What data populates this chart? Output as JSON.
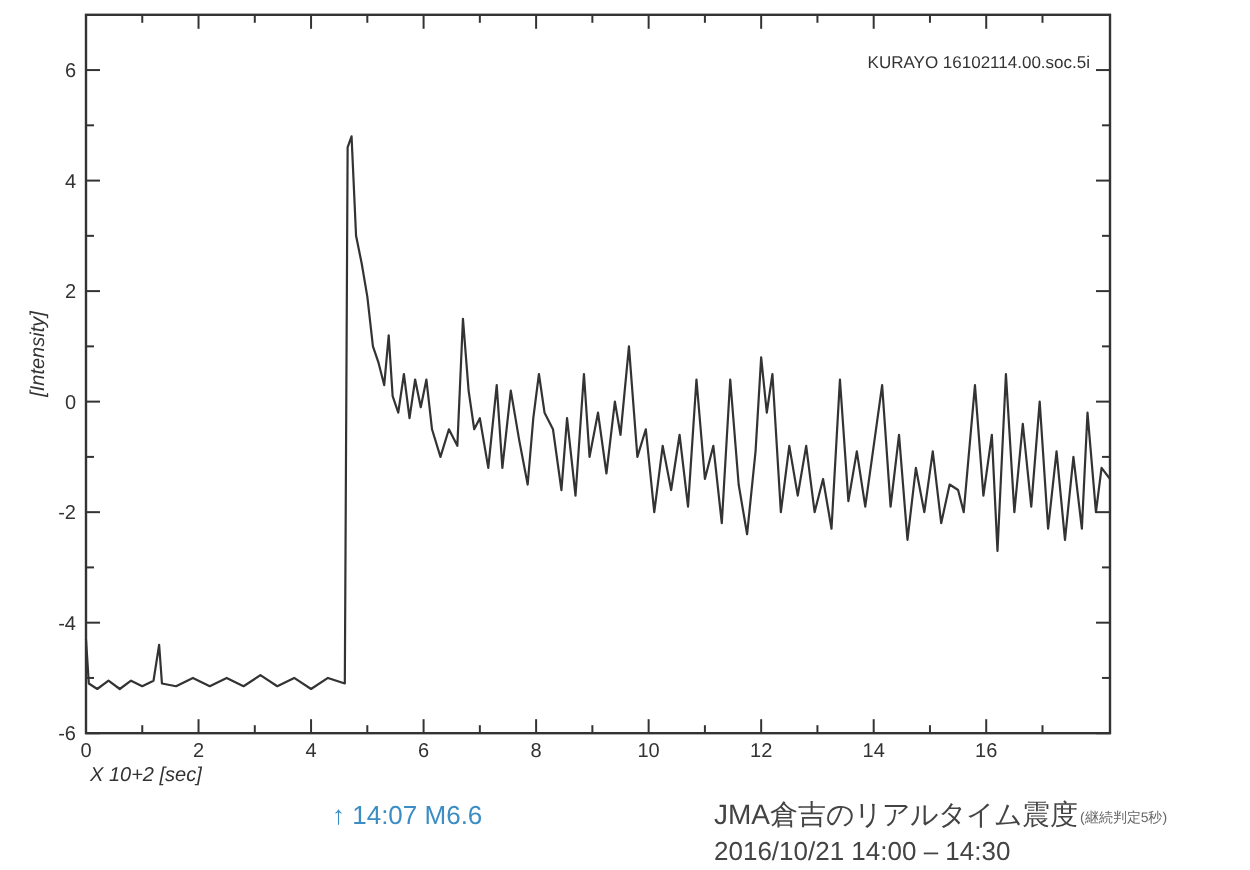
{
  "chart_data": {
    "type": "line",
    "xlabel": "X 10+2 [sec]",
    "ylabel": "[Intensity]",
    "annotations": [
      "KURAYO  16102114.00.soc.5i",
      "↑ 14:07 M6.6",
      "JMA倉吉のリアルタイム震度",
      "(継続判定5秒)",
      "2016/10/21 14:00 – 14:30"
    ],
    "xlim": [
      0,
      18.2
    ],
    "ylim": [
      -6,
      7
    ],
    "xticks": [
      0,
      {
        "value": 1,
        "label": null
      },
      2,
      {
        "value": 3,
        "label": null
      },
      4,
      {
        "value": 5,
        "label": null
      },
      6,
      {
        "value": 7,
        "label": null
      },
      8,
      {
        "value": 9,
        "label": null
      },
      10,
      {
        "value": 11,
        "label": null
      },
      12,
      {
        "value": 13,
        "label": null
      },
      14,
      {
        "value": 15,
        "label": null
      },
      16,
      {
        "value": 17,
        "label": null
      }
    ],
    "yticks": [
      -6,
      {
        "value": -5,
        "label": null
      },
      -4,
      {
        "value": -3,
        "label": null
      },
      -2,
      {
        "value": -1,
        "label": null
      },
      0,
      {
        "value": 1,
        "label": null
      },
      2,
      {
        "value": 3,
        "label": null
      },
      4,
      {
        "value": 5,
        "label": null
      },
      6
    ],
    "grid": false,
    "marker": "none",
    "line_style": "solid",
    "series": [
      {
        "color": "#333333",
        "x": [
          0,
          0.05,
          0.2,
          0.4,
          0.6,
          0.8,
          1.0,
          1.2,
          1.3,
          1.35,
          1.6,
          1.9,
          2.2,
          2.5,
          2.8,
          3.1,
          3.4,
          3.7,
          4.0,
          4.3,
          4.6,
          4.65,
          4.72,
          4.8,
          4.9,
          5.0,
          5.1,
          5.2,
          5.3,
          5.38,
          5.45,
          5.55,
          5.65,
          5.75,
          5.85,
          5.95,
          6.05,
          6.15,
          6.3,
          6.45,
          6.6,
          6.7,
          6.8,
          6.9,
          7.0,
          7.15,
          7.3,
          7.4,
          7.55,
          7.7,
          7.85,
          7.95,
          8.05,
          8.15,
          8.3,
          8.45,
          8.55,
          8.7,
          8.85,
          8.95,
          9.1,
          9.25,
          9.4,
          9.5,
          9.65,
          9.8,
          9.95,
          10.1,
          10.25,
          10.4,
          10.55,
          10.7,
          10.85,
          11.0,
          11.15,
          11.3,
          11.45,
          11.6,
          11.75,
          11.9,
          12.0,
          12.1,
          12.2,
          12.35,
          12.5,
          12.65,
          12.8,
          12.95,
          13.1,
          13.25,
          13.4,
          13.55,
          13.7,
          13.85,
          14.0,
          14.15,
          14.3,
          14.45,
          14.6,
          14.75,
          14.9,
          15.05,
          15.2,
          15.35,
          15.5,
          15.6,
          15.8,
          15.95,
          16.1,
          16.2,
          16.35,
          16.5,
          16.65,
          16.8,
          16.95,
          17.1,
          17.25,
          17.4,
          17.55,
          17.7,
          17.8,
          17.95,
          18.05,
          18.2
        ],
        "values": [
          -4.3,
          -5.1,
          -5.2,
          -5.05,
          -5.2,
          -5.05,
          -5.15,
          -5.05,
          -4.4,
          -5.1,
          -5.15,
          -5.0,
          -5.15,
          -5.0,
          -5.15,
          -4.95,
          -5.15,
          -5.0,
          -5.2,
          -5.0,
          -5.1,
          4.6,
          4.8,
          3.0,
          2.5,
          1.9,
          1.0,
          0.7,
          0.3,
          1.2,
          0.1,
          -0.2,
          0.5,
          -0.3,
          0.4,
          -0.1,
          0.4,
          -0.5,
          -1.0,
          -0.5,
          -0.8,
          1.5,
          0.2,
          -0.5,
          -0.3,
          -1.2,
          0.3,
          -1.2,
          0.2,
          -0.7,
          -1.5,
          -0.3,
          0.5,
          -0.2,
          -0.5,
          -1.6,
          -0.3,
          -1.7,
          0.5,
          -1.0,
          -0.2,
          -1.3,
          0.0,
          -0.6,
          1.0,
          -1.0,
          -0.5,
          -2.0,
          -0.8,
          -1.6,
          -0.6,
          -1.9,
          0.4,
          -1.4,
          -0.8,
          -2.2,
          0.4,
          -1.5,
          -2.4,
          -0.9,
          0.8,
          -0.2,
          0.5,
          -2.0,
          -0.8,
          -1.7,
          -0.8,
          -2.0,
          -1.4,
          -2.3,
          0.4,
          -1.8,
          -0.9,
          -1.9,
          -0.8,
          0.3,
          -1.9,
          -0.6,
          -2.5,
          -1.2,
          -2.0,
          -0.9,
          -2.2,
          -1.5,
          -1.6,
          -2.0,
          0.3,
          -1.7,
          -0.6,
          -2.7,
          0.5,
          -2.0,
          -0.4,
          -1.9,
          0.0,
          -2.3,
          -0.9,
          -2.5,
          -1.0,
          -2.3,
          -0.2,
          -2.0,
          -1.2,
          -1.4
        ]
      }
    ]
  }
}
